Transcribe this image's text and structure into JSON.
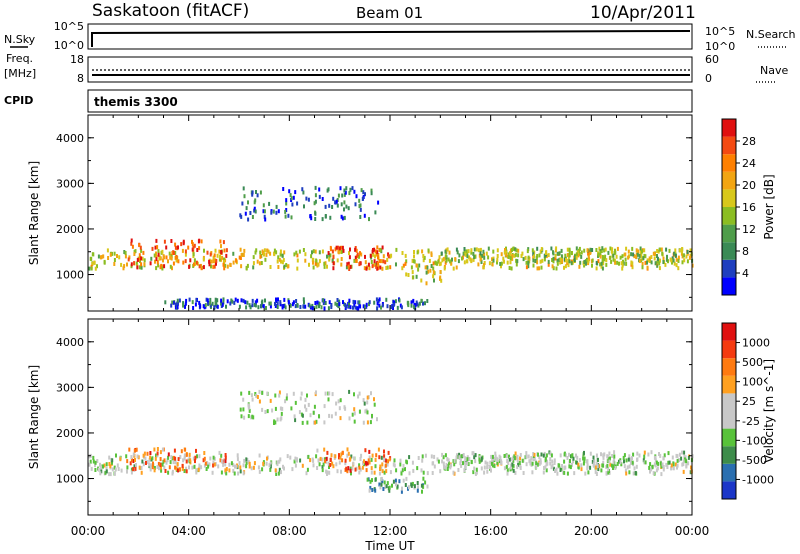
{
  "header": {
    "station": "Saskatoon (fitACF)",
    "beam": "Beam 01",
    "date": "10/Apr/2011"
  },
  "noise_panel": {
    "left_label": "N.Sky",
    "left_tick_top": "10^5",
    "left_tick_bottom": "10^0",
    "right_tick_top": "10^5",
    "right_tick_bottom": "10^0",
    "right_label": "N.Search"
  },
  "freq_panel": {
    "left_label_line1": "Freq.",
    "left_label_line2": "[MHz]",
    "left_tick_top": "18",
    "left_tick_bottom": "8",
    "right_tick_top": "60",
    "right_tick_bottom": "0",
    "right_label": "Nave"
  },
  "cpid_panel": {
    "label": "CPID",
    "program": "themis 3300"
  },
  "chart_data": [
    {
      "type": "heatmap",
      "ylabel": "Slant Range [km]",
      "ylim": [
        200,
        4500
      ],
      "yticks": [
        "1000",
        "2000",
        "3000",
        "4000"
      ],
      "xlim_hours": [
        0,
        24
      ],
      "colorbar": {
        "label": "Power [dB]",
        "tick_labels": [
          "4",
          "8",
          "12",
          "16",
          "20",
          "24",
          "28"
        ],
        "colors": [
          "#0000ff",
          "#1f3fbf",
          "#3a8a55",
          "#4f9d4a",
          "#8bbd22",
          "#d8c81b",
          "#f2a512",
          "#ff8000",
          "#f44a12",
          "#e01010"
        ]
      },
      "bands": [
        {
          "t": [
            0.0,
            24.0
          ],
          "r_center": 1380,
          "r_width": 420,
          "level": 0.55
        },
        {
          "t": [
            1.5,
            5.5
          ],
          "r_center": 1500,
          "r_width": 600,
          "level": 0.85
        },
        {
          "t": [
            6.0,
            11.5
          ],
          "r_center": 2600,
          "r_width": 700,
          "level": 0.2
        },
        {
          "t": [
            9.5,
            12.0
          ],
          "r_center": 1400,
          "r_width": 500,
          "level": 0.9
        },
        {
          "t": [
            12.5,
            14.0
          ],
          "r_center": 1100,
          "r_width": 500,
          "level": 0.5
        },
        {
          "t": [
            14.0,
            24.0
          ],
          "r_center": 1450,
          "r_width": 350,
          "level": 0.45
        },
        {
          "t": [
            3.0,
            13.5
          ],
          "r_center": 400,
          "r_width": 200,
          "level": 0.15
        }
      ]
    },
    {
      "type": "heatmap",
      "ylabel": "Slant Range [km]",
      "ylim": [
        200,
        4500
      ],
      "yticks": [
        "1000",
        "2000",
        "3000",
        "4000"
      ],
      "xlim_hours": [
        0,
        24
      ],
      "xticks": [
        "00:00",
        "04:00",
        "08:00",
        "12:00",
        "16:00",
        "20:00",
        "00:00"
      ],
      "xlabel": "Time UT",
      "colorbar": {
        "label": "Velocity [m s^-1]",
        "tick_labels": [
          "1000",
          "500",
          "100",
          "25",
          "-25",
          "-100",
          "-500",
          "-1000"
        ],
        "colors": [
          "#1b36c8",
          "#2a6fb0",
          "#3d8c4a",
          "#58c23a",
          "#c8c8c8",
          "#c8c8c8",
          "#ffa020",
          "#ff7a10",
          "#f43a10",
          "#e01010"
        ]
      },
      "bands": [
        {
          "t": [
            0.0,
            24.0
          ],
          "r_center": 1350,
          "r_width": 420,
          "level": 0.45
        },
        {
          "t": [
            1.5,
            5.5
          ],
          "r_center": 1450,
          "r_width": 500,
          "level": 0.75
        },
        {
          "t": [
            6.0,
            11.5
          ],
          "r_center": 2600,
          "r_width": 700,
          "level": 0.45
        },
        {
          "t": [
            9.0,
            12.0
          ],
          "r_center": 1450,
          "r_width": 500,
          "level": 0.75
        },
        {
          "t": [
            11.0,
            13.5
          ],
          "r_center": 900,
          "r_width": 300,
          "level": 0.3
        },
        {
          "t": [
            14.0,
            24.0
          ],
          "r_center": 1450,
          "r_width": 350,
          "level": 0.45
        }
      ]
    }
  ]
}
